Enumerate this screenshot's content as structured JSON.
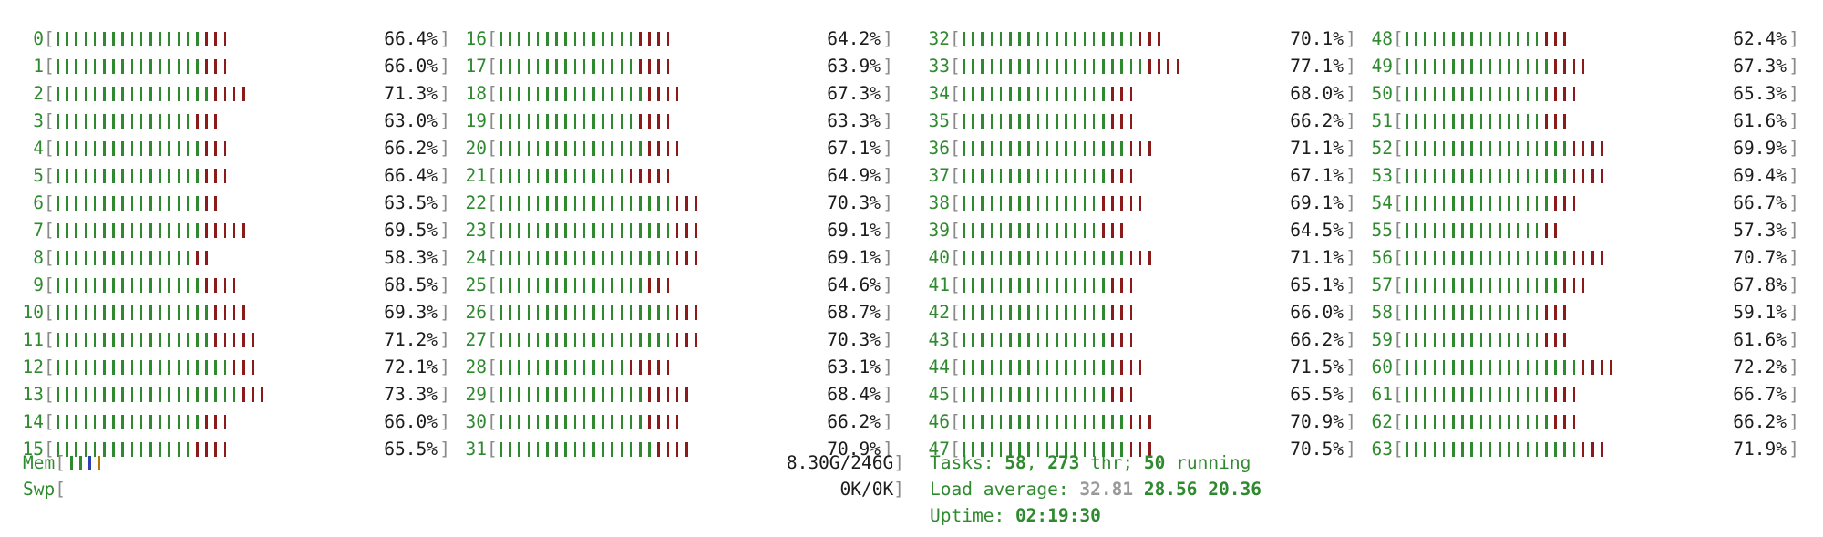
{
  "cpus": [
    {
      "id": "0",
      "pct": "66.4%",
      "g": 16,
      "r": 3
    },
    {
      "id": "1",
      "pct": "66.0%",
      "g": 16,
      "r": 3
    },
    {
      "id": "2",
      "pct": "71.3%",
      "g": 17,
      "r": 4
    },
    {
      "id": "3",
      "pct": "63.0%",
      "g": 15,
      "r": 3
    },
    {
      "id": "4",
      "pct": "66.2%",
      "g": 16,
      "r": 3
    },
    {
      "id": "5",
      "pct": "66.4%",
      "g": 16,
      "r": 3
    },
    {
      "id": "6",
      "pct": "63.5%",
      "g": 16,
      "r": 2
    },
    {
      "id": "7",
      "pct": "69.5%",
      "g": 16,
      "r": 5
    },
    {
      "id": "8",
      "pct": "58.3%",
      "g": 15,
      "r": 2
    },
    {
      "id": "9",
      "pct": "68.5%",
      "g": 16,
      "r": 4
    },
    {
      "id": "10",
      "pct": "69.3%",
      "g": 17,
      "r": 4
    },
    {
      "id": "11",
      "pct": "71.2%",
      "g": 17,
      "r": 5
    },
    {
      "id": "12",
      "pct": "72.1%",
      "g": 19,
      "r": 3
    },
    {
      "id": "13",
      "pct": "73.3%",
      "g": 20,
      "r": 3
    },
    {
      "id": "14",
      "pct": "66.0%",
      "g": 16,
      "r": 3
    },
    {
      "id": "15",
      "pct": "65.5%",
      "g": 15,
      "r": 4
    },
    {
      "id": "16",
      "pct": "64.2%",
      "g": 15,
      "r": 4
    },
    {
      "id": "17",
      "pct": "63.9%",
      "g": 15,
      "r": 4
    },
    {
      "id": "18",
      "pct": "67.3%",
      "g": 16,
      "r": 4
    },
    {
      "id": "19",
      "pct": "63.3%",
      "g": 15,
      "r": 4
    },
    {
      "id": "20",
      "pct": "67.1%",
      "g": 16,
      "r": 4
    },
    {
      "id": "21",
      "pct": "64.9%",
      "g": 14,
      "r": 5
    },
    {
      "id": "22",
      "pct": "70.3%",
      "g": 19,
      "r": 3
    },
    {
      "id": "23",
      "pct": "69.1%",
      "g": 19,
      "r": 3
    },
    {
      "id": "24",
      "pct": "69.1%",
      "g": 19,
      "r": 3
    },
    {
      "id": "25",
      "pct": "64.6%",
      "g": 16,
      "r": 3
    },
    {
      "id": "26",
      "pct": "68.7%",
      "g": 19,
      "r": 3
    },
    {
      "id": "27",
      "pct": "70.3%",
      "g": 19,
      "r": 3
    },
    {
      "id": "28",
      "pct": "63.1%",
      "g": 14,
      "r": 5
    },
    {
      "id": "29",
      "pct": "68.4%",
      "g": 16,
      "r": 5
    },
    {
      "id": "30",
      "pct": "66.2%",
      "g": 16,
      "r": 4
    },
    {
      "id": "31",
      "pct": "70.9%",
      "g": 17,
      "r": 4
    },
    {
      "id": "32",
      "pct": "70.1%",
      "g": 19,
      "r": 3
    },
    {
      "id": "33",
      "pct": "77.1%",
      "g": 20,
      "r": 4
    },
    {
      "id": "34",
      "pct": "68.0%",
      "g": 16,
      "r": 3
    },
    {
      "id": "35",
      "pct": "66.2%",
      "g": 16,
      "r": 3
    },
    {
      "id": "36",
      "pct": "71.1%",
      "g": 18,
      "r": 3
    },
    {
      "id": "37",
      "pct": "67.1%",
      "g": 16,
      "r": 3
    },
    {
      "id": "38",
      "pct": "69.1%",
      "g": 15,
      "r": 5
    },
    {
      "id": "39",
      "pct": "64.5%",
      "g": 15,
      "r": 3
    },
    {
      "id": "40",
      "pct": "71.1%",
      "g": 18,
      "r": 3
    },
    {
      "id": "41",
      "pct": "65.1%",
      "g": 16,
      "r": 3
    },
    {
      "id": "42",
      "pct": "66.0%",
      "g": 16,
      "r": 3
    },
    {
      "id": "43",
      "pct": "66.2%",
      "g": 16,
      "r": 3
    },
    {
      "id": "44",
      "pct": "71.5%",
      "g": 17,
      "r": 3
    },
    {
      "id": "45",
      "pct": "65.5%",
      "g": 16,
      "r": 3
    },
    {
      "id": "46",
      "pct": "70.9%",
      "g": 18,
      "r": 3
    },
    {
      "id": "47",
      "pct": "70.5%",
      "g": 18,
      "r": 3
    },
    {
      "id": "48",
      "pct": "62.4%",
      "g": 15,
      "r": 3
    },
    {
      "id": "49",
      "pct": "67.3%",
      "g": 16,
      "r": 4
    },
    {
      "id": "50",
      "pct": "65.3%",
      "g": 16,
      "r": 3
    },
    {
      "id": "51",
      "pct": "61.6%",
      "g": 15,
      "r": 3
    },
    {
      "id": "52",
      "pct": "69.9%",
      "g": 18,
      "r": 4
    },
    {
      "id": "53",
      "pct": "69.4%",
      "g": 18,
      "r": 4
    },
    {
      "id": "54",
      "pct": "66.7%",
      "g": 16,
      "r": 3
    },
    {
      "id": "55",
      "pct": "57.3%",
      "g": 15,
      "r": 2
    },
    {
      "id": "56",
      "pct": "70.7%",
      "g": 18,
      "r": 4
    },
    {
      "id": "57",
      "pct": "67.8%",
      "g": 17,
      "r": 3
    },
    {
      "id": "58",
      "pct": "59.1%",
      "g": 15,
      "r": 3
    },
    {
      "id": "59",
      "pct": "61.6%",
      "g": 15,
      "r": 3
    },
    {
      "id": "60",
      "pct": "72.2%",
      "g": 19,
      "r": 4
    },
    {
      "id": "61",
      "pct": "66.7%",
      "g": 16,
      "r": 3
    },
    {
      "id": "62",
      "pct": "66.2%",
      "g": 16,
      "r": 3
    },
    {
      "id": "63",
      "pct": "71.9%",
      "g": 19,
      "r": 3
    }
  ],
  "mem": {
    "label": "Mem",
    "value": "8.30G/246G",
    "bars": [
      "#2f8a2f",
      "#2f8a2f",
      "#2b3fb5",
      "#b07a00"
    ]
  },
  "swp": {
    "label": "Swp",
    "value": "0K/0K"
  },
  "tasks": {
    "label": "Tasks:",
    "count": "58",
    "sep1": ",",
    "threads": "273",
    "thr_label": "thr;",
    "running": "50",
    "running_label": "running"
  },
  "load": {
    "label": "Load average:",
    "one": "32.81",
    "five": "28.56",
    "fifteen": "20.36"
  },
  "uptime": {
    "label": "Uptime:",
    "value": "02:19:30"
  },
  "colors": {
    "green": "#2f8a2f",
    "red": "#8b1a1a",
    "bracket": "#8a8a8a"
  }
}
